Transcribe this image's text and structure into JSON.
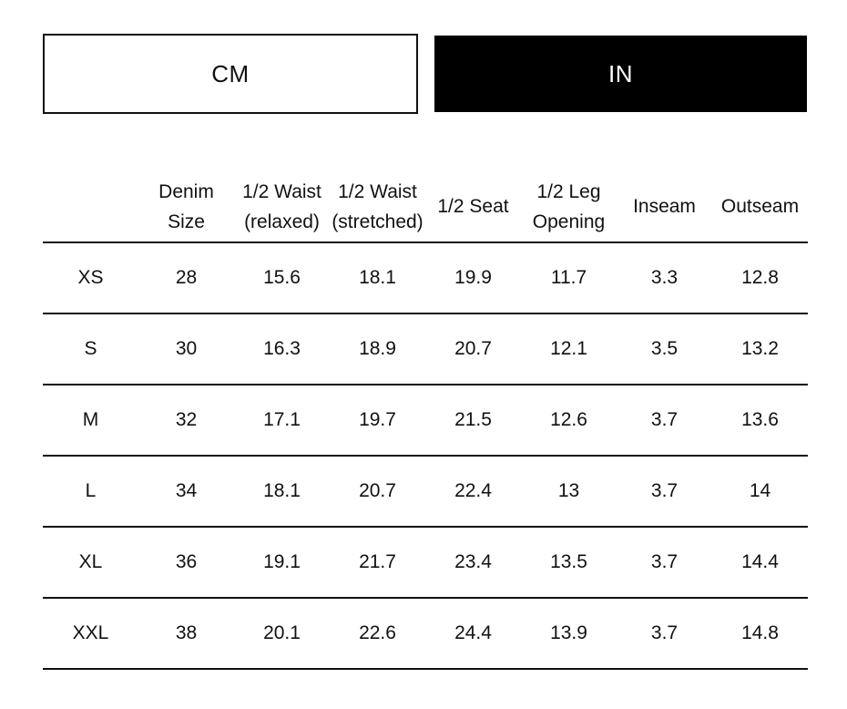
{
  "unit_toggle": {
    "cm_label": "CM",
    "in_label": "IN",
    "active": "IN"
  },
  "size_table": {
    "headers": [
      [
        ""
      ],
      [
        "Denim",
        "Size"
      ],
      [
        "1/2 Waist",
        "(relaxed)"
      ],
      [
        "1/2 Waist",
        "(stretched)"
      ],
      [
        "1/2 Seat"
      ],
      [
        "1/2 Leg",
        "Opening"
      ],
      [
        "Inseam"
      ],
      [
        "Outseam"
      ]
    ],
    "rows": [
      [
        "XS",
        "28",
        "15.6",
        "18.1",
        "19.9",
        "11.7",
        "3.3",
        "12.8"
      ],
      [
        "S",
        "30",
        "16.3",
        "18.9",
        "20.7",
        "12.1",
        "3.5",
        "13.2"
      ],
      [
        "M",
        "32",
        "17.1",
        "19.7",
        "21.5",
        "12.6",
        "3.7",
        "13.6"
      ],
      [
        "L",
        "34",
        "18.1",
        "20.7",
        "22.4",
        "13",
        "3.7",
        "14"
      ],
      [
        "XL",
        "36",
        "19.1",
        "21.7",
        "23.4",
        "13.5",
        "3.7",
        "14.4"
      ],
      [
        "XXL",
        "38",
        "20.1",
        "22.6",
        "24.4",
        "13.9",
        "3.7",
        "14.8"
      ]
    ]
  },
  "colors": {
    "active_bg": "#000000",
    "text": "#111111",
    "border": "#111111"
  }
}
